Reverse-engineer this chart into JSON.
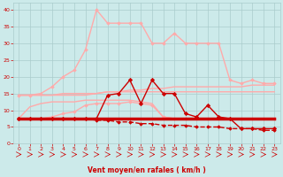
{
  "x": [
    0,
    1,
    2,
    3,
    4,
    5,
    6,
    7,
    8,
    9,
    10,
    11,
    12,
    13,
    14,
    15,
    16,
    17,
    18,
    19,
    20,
    21,
    22,
    23
  ],
  "series": [
    {
      "y": [
        7.5,
        7.5,
        7.5,
        7.5,
        7.5,
        7.5,
        7.5,
        7.5,
        7.5,
        7.5,
        7.5,
        7.5,
        7.5,
        7.5,
        7.5,
        7.5,
        7.5,
        7.5,
        7.5,
        7.5,
        7.5,
        7.5,
        7.5,
        7.5
      ],
      "color": "#cc0000",
      "lw": 2.5,
      "marker": null,
      "zorder": 5
    },
    {
      "y": [
        7.5,
        7.5,
        7.5,
        7.5,
        7.5,
        7.5,
        7.5,
        7.0,
        7.0,
        6.5,
        6.5,
        6.0,
        6.0,
        5.5,
        5.5,
        5.5,
        5.0,
        5.0,
        5.0,
        4.5,
        4.5,
        4.5,
        4.0,
        4.0
      ],
      "color": "#cc0000",
      "lw": 1.0,
      "marker": "D",
      "ms": 1.8,
      "ls": "--",
      "zorder": 4
    },
    {
      "y": [
        14.5,
        14.5,
        14.5,
        14.5,
        14.5,
        14.5,
        14.5,
        15.0,
        15.5,
        15.5,
        16.0,
        16.0,
        16.5,
        16.5,
        17.0,
        17.0,
        17.0,
        17.0,
        17.0,
        17.0,
        17.0,
        17.5,
        17.5,
        17.5
      ],
      "color": "#ffaaaa",
      "lw": 1.0,
      "marker": null,
      "zorder": 2
    },
    {
      "y": [
        7.5,
        7.5,
        7.5,
        8.0,
        9.0,
        9.5,
        11.5,
        12.0,
        12.0,
        12.0,
        12.5,
        12.0,
        11.5,
        8.0,
        7.5,
        7.5,
        7.5,
        7.5,
        7.5,
        7.5,
        7.5,
        7.5,
        7.5,
        7.5
      ],
      "color": "#ffaaaa",
      "lw": 1.0,
      "marker": "D",
      "ms": 1.8,
      "ls": "-",
      "zorder": 2
    },
    {
      "y": [
        14.5,
        14.5,
        15.0,
        17.0,
        20.0,
        22.0,
        28.0,
        40.0,
        36.0,
        36.0,
        36.0,
        36.0,
        30.0,
        30.0,
        33.0,
        30.0,
        30.0,
        30.0,
        30.0,
        19.0,
        18.0,
        19.0,
        18.0,
        18.0
      ],
      "color": "#ffaaaa",
      "lw": 1.0,
      "marker": "D",
      "ms": 1.8,
      "ls": "-",
      "zorder": 2
    },
    {
      "y": [
        14.5,
        14.5,
        14.5,
        14.5,
        15.0,
        15.0,
        15.0,
        15.0,
        15.5,
        15.5,
        15.5,
        15.5,
        15.5,
        15.5,
        15.5,
        15.5,
        15.5,
        15.5,
        15.5,
        15.5,
        15.5,
        15.5,
        15.5,
        15.5
      ],
      "color": "#ffaaaa",
      "lw": 1.0,
      "marker": null,
      "zorder": 2
    },
    {
      "y": [
        7.5,
        7.5,
        7.5,
        7.5,
        7.5,
        7.5,
        7.5,
        7.5,
        14.5,
        15.0,
        19.0,
        12.0,
        19.0,
        15.0,
        15.0,
        9.0,
        8.0,
        11.5,
        8.0,
        7.5,
        4.5,
        4.5,
        4.5,
        4.5
      ],
      "color": "#cc0000",
      "lw": 1.0,
      "marker": "D",
      "ms": 2.2,
      "ls": "-",
      "zorder": 3
    },
    {
      "y": [
        7.5,
        11.0,
        12.0,
        12.5,
        12.5,
        12.5,
        13.0,
        13.0,
        13.0,
        13.0,
        13.0,
        12.5,
        12.0,
        8.0,
        7.5,
        7.5,
        7.5,
        7.5,
        7.5,
        7.5,
        7.5,
        7.5,
        7.5,
        7.5
      ],
      "color": "#ffaaaa",
      "lw": 1.0,
      "marker": null,
      "zorder": 2
    }
  ],
  "xlabel": "Vent moyen/en rafales ( km/h )",
  "xlim": [
    -0.5,
    23.5
  ],
  "ylim": [
    0,
    42
  ],
  "yticks": [
    0,
    5,
    10,
    15,
    20,
    25,
    30,
    35,
    40
  ],
  "xticks": [
    0,
    1,
    2,
    3,
    4,
    5,
    6,
    7,
    8,
    9,
    10,
    11,
    12,
    13,
    14,
    15,
    16,
    17,
    18,
    19,
    20,
    21,
    22,
    23
  ],
  "bg_color": "#cceaea",
  "grid_color": "#aacccc",
  "tick_color": "#cc0000",
  "label_color": "#cc0000",
  "figsize": [
    3.2,
    2.0
  ],
  "dpi": 100
}
